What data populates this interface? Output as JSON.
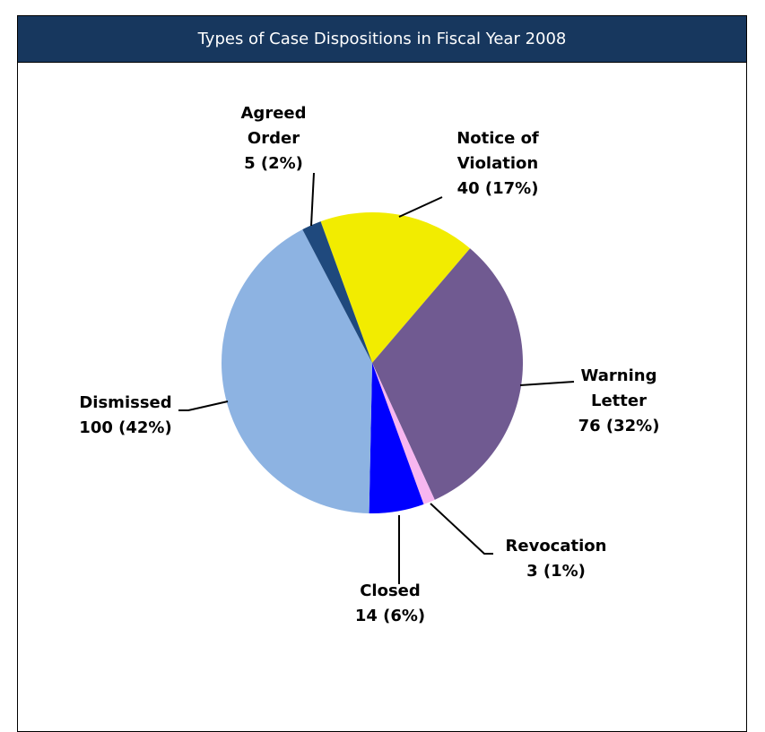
{
  "chart_data": {
    "type": "pie",
    "title": "Types of Case Dispositions in Fiscal Year 2008",
    "categories": [
      "Notice of Violation",
      "Warning Letter",
      "Revocation",
      "Closed",
      "Dismissed",
      "Agreed Order"
    ],
    "values": [
      40,
      76,
      3,
      14,
      100,
      5
    ],
    "value_labels": [
      "40 (17%)",
      "76 (32%)",
      "3 (1%)",
      "14 (6%)",
      "100 (42%)",
      "5 (2%)"
    ],
    "colors": [
      "#f2ec00",
      "#705a91",
      "#f7b6f0",
      "#0000ff",
      "#8db3e2",
      "#1f497d"
    ]
  }
}
